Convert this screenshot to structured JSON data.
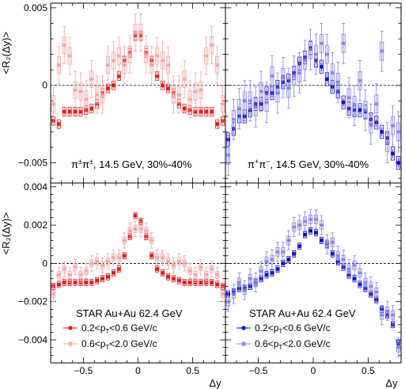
{
  "figure": {
    "ylabel": "<R₂(Δy)>",
    "xlabel": "Δy"
  },
  "chart_data": [
    {
      "type": "scatter",
      "panel": "top-left",
      "annotation": "π±π±, 14.5 GeV, 30%-40%",
      "ylabel": "<R₂(Δy)>",
      "xlabel": "",
      "xlim": [
        -0.8,
        0.8
      ],
      "ylim": [
        -0.0063,
        0.0053
      ],
      "yticks": [
        -0.005,
        0,
        0.005
      ],
      "yticklabels": [
        "−0.005",
        "0",
        "0.005"
      ],
      "xticks": [],
      "series": [
        {
          "name": "0.2<pT<0.6 GeV/c",
          "style": "filled",
          "color": "#e31a1c",
          "x": [
            -0.775,
            -0.725,
            -0.675,
            -0.625,
            -0.575,
            -0.525,
            -0.475,
            -0.425,
            -0.375,
            -0.325,
            -0.275,
            -0.225,
            -0.175,
            -0.125,
            -0.075,
            -0.025,
            0.025,
            0.075,
            0.125,
            0.175,
            0.225,
            0.275,
            0.325,
            0.375,
            0.425,
            0.475,
            0.525,
            0.575,
            0.625,
            0.675,
            0.725,
            0.775
          ],
          "y": [
            -0.0023,
            -0.0025,
            -0.0017,
            -0.0017,
            -0.0017,
            -0.0017,
            -0.0016,
            -0.0015,
            -0.0012,
            -0.0005,
            -0.0002,
            0.0,
            0.0006,
            0.0016,
            0.0021,
            0.0032,
            0.0032,
            0.0021,
            0.0016,
            0.0006,
            0.0,
            -0.0002,
            -0.0005,
            -0.0012,
            -0.0015,
            -0.0016,
            -0.0017,
            -0.0017,
            -0.0017,
            -0.0017,
            -0.0025,
            -0.0023
          ],
          "err": [
            0.0002,
            0.0002,
            0.0002,
            0.0002,
            0.0002,
            0.0002,
            0.0002,
            0.0002,
            0.0002,
            0.0002,
            0.0002,
            0.0002,
            0.0002,
            0.0002,
            0.0002,
            0.0002,
            0.0002,
            0.0002,
            0.0002,
            0.0002,
            0.0002,
            0.0002,
            0.0002,
            0.0002,
            0.0002,
            0.0002,
            0.0002,
            0.0002,
            0.0002,
            0.0002,
            0.0002,
            0.0002
          ]
        },
        {
          "name": "0.6<pT<2.0 GeV/c",
          "style": "open-star",
          "color": "#f4a0a0",
          "x": [
            -0.775,
            -0.725,
            -0.675,
            -0.625,
            -0.575,
            -0.525,
            -0.475,
            -0.425,
            -0.375,
            -0.325,
            -0.275,
            -0.225,
            -0.175,
            -0.125,
            -0.075,
            -0.025,
            0.025,
            0.075,
            0.125,
            0.175,
            0.225,
            0.275,
            0.325,
            0.375,
            0.425,
            0.475,
            0.525,
            0.575,
            0.625,
            0.675,
            0.725,
            0.775
          ],
          "y": [
            -0.0012,
            0.0013,
            0.0026,
            0.0019,
            -0.0003,
            -0.0004,
            -0.0009,
            0.0004,
            -0.0006,
            -0.0006,
            0.0013,
            0.0016,
            0.0019,
            0.0013,
            0.002,
            0.0034,
            0.0034,
            0.002,
            0.0013,
            0.0019,
            0.0016,
            0.0013,
            -0.0006,
            -0.0006,
            0.0004,
            -0.0009,
            -0.0004,
            -0.0003,
            0.0019,
            0.0026,
            0.0013,
            -0.0012
          ],
          "err": [
            0.0012,
            0.0012,
            0.0012,
            0.0012,
            0.0012,
            0.0012,
            0.0012,
            0.0012,
            0.0012,
            0.0012,
            0.0012,
            0.0012,
            0.0012,
            0.0012,
            0.0012,
            0.0012,
            0.0012,
            0.0012,
            0.0012,
            0.0012,
            0.0012,
            0.0012,
            0.0012,
            0.0012,
            0.0012,
            0.0012,
            0.0012,
            0.0012,
            0.0012,
            0.0012,
            0.0012,
            0.0012
          ]
        }
      ]
    },
    {
      "type": "scatter",
      "panel": "top-right",
      "annotation": "π+π−, 14.5 GeV, 30%-40%",
      "xlabel": "",
      "xlim": [
        -0.8,
        0.8
      ],
      "ylim": [
        -0.0063,
        0.0053
      ],
      "xticks": [],
      "series": [
        {
          "name": "0.2<pT<0.6 GeV/c",
          "style": "filled",
          "color": "#1010d0",
          "x": [
            -0.775,
            -0.725,
            -0.675,
            -0.625,
            -0.575,
            -0.525,
            -0.475,
            -0.425,
            -0.375,
            -0.325,
            -0.275,
            -0.225,
            -0.175,
            -0.125,
            -0.075,
            -0.025,
            0.025,
            0.075,
            0.125,
            0.175,
            0.225,
            0.275,
            0.325,
            0.375,
            0.425,
            0.475,
            0.525,
            0.575,
            0.625,
            0.675,
            0.725,
            0.775
          ],
          "y": [
            -0.0035,
            -0.0028,
            -0.002,
            -0.002,
            -0.0016,
            -0.0012,
            -0.0012,
            -0.0005,
            -0.0005,
            -0.0001,
            0.0002,
            0.0003,
            0.0008,
            0.0014,
            0.0018,
            0.0024,
            0.0016,
            0.0012,
            0.0004,
            -0.0001,
            -0.0004,
            -0.0011,
            -0.0015,
            -0.0016,
            -0.0016,
            -0.0017,
            -0.0022,
            -0.0024,
            -0.003,
            -0.0034,
            -0.0044,
            -0.005
          ],
          "err": [
            0.0003,
            0.0003,
            0.0003,
            0.0003,
            0.0003,
            0.0003,
            0.0003,
            0.0003,
            0.0003,
            0.0003,
            0.0003,
            0.0003,
            0.0003,
            0.0003,
            0.0003,
            0.0003,
            0.0003,
            0.0003,
            0.0003,
            0.0003,
            0.0003,
            0.0003,
            0.0003,
            0.0003,
            0.0003,
            0.0003,
            0.0003,
            0.0003,
            0.0003,
            0.0003,
            0.0003,
            0.0003
          ]
        },
        {
          "name": "0.6<pT<2.0 GeV/c",
          "style": "open-star",
          "color": "#8080e0",
          "x": [
            -0.775,
            -0.725,
            -0.675,
            -0.625,
            -0.575,
            -0.525,
            -0.475,
            -0.425,
            -0.375,
            -0.325,
            -0.275,
            -0.225,
            -0.175,
            -0.125,
            -0.075,
            -0.025,
            0.025,
            0.075,
            0.125,
            0.175,
            0.225,
            0.275,
            0.325,
            0.375,
            0.425,
            0.475,
            0.525,
            0.575,
            0.625,
            0.675,
            0.725,
            0.775
          ],
          "y": [
            -0.0045,
            -0.0022,
            -0.0015,
            -0.001,
            -0.001,
            -0.0014,
            -0.0004,
            -0.0011,
            0.0006,
            -0.0005,
            0.0005,
            -0.0002,
            0.0006,
            0.0008,
            0.0016,
            0.0023,
            0.002,
            0.0027,
            0.002,
            0.0008,
            0.0002,
            0.0027,
            -0.0008,
            -0.0013,
            0.0003,
            -0.0016,
            -0.0025,
            -0.0012,
            0.0022,
            -0.0037,
            -0.0026,
            -0.003
          ],
          "err": [
            0.0013,
            0.0013,
            0.0013,
            0.0013,
            0.0013,
            0.0013,
            0.0013,
            0.0013,
            0.0013,
            0.0013,
            0.0013,
            0.0013,
            0.0013,
            0.0013,
            0.0013,
            0.0013,
            0.0013,
            0.0013,
            0.0013,
            0.0013,
            0.0013,
            0.0013,
            0.0013,
            0.0013,
            0.0013,
            0.0013,
            0.0013,
            0.0013,
            0.0013,
            0.0013,
            0.0013,
            0.0013
          ]
        }
      ]
    },
    {
      "type": "scatter",
      "panel": "bottom-left",
      "annotation": "STAR Au+Au 62.4 GeV",
      "ylabel": "<R₂(Δy)>",
      "xlabel": "",
      "xlim": [
        -0.8,
        0.8
      ],
      "ylim": [
        -0.0052,
        0.0042
      ],
      "yticks": [
        -0.004,
        -0.002,
        0,
        0.002,
        0.004
      ],
      "yticklabels": [
        "−0.004",
        "−0.002",
        "0",
        "0.002",
        "0.004"
      ],
      "xticks": [
        -0.5,
        0,
        0.5
      ],
      "xticklabels": [
        "−0.5",
        "0",
        "0.5"
      ],
      "legend": "bottom-left",
      "series": [
        {
          "name": "0.2<pT<0.6 GeV/c",
          "label": "0.2<p",
          "label_sub": "T",
          "label_tail": "<0.6 GeV/c",
          "style": "filled",
          "color": "#e31a1c",
          "x": [
            -0.775,
            -0.725,
            -0.675,
            -0.625,
            -0.575,
            -0.525,
            -0.475,
            -0.425,
            -0.375,
            -0.325,
            -0.275,
            -0.225,
            -0.175,
            -0.125,
            -0.075,
            -0.025,
            0.025,
            0.075,
            0.125,
            0.175,
            0.225,
            0.275,
            0.325,
            0.375,
            0.425,
            0.475,
            0.525,
            0.575,
            0.625,
            0.675,
            0.725,
            0.775
          ],
          "y": [
            -0.0012,
            -0.0011,
            -0.001,
            -0.001,
            -0.001,
            -0.001,
            -0.001,
            -0.001,
            -0.0009,
            -0.0008,
            -0.0007,
            -0.0005,
            -0.0003,
            0.0004,
            0.0014,
            0.0025,
            0.0022,
            0.0014,
            0.0004,
            -0.0003,
            -0.0005,
            -0.0007,
            -0.0008,
            -0.0009,
            -0.001,
            -0.001,
            -0.001,
            -0.001,
            -0.001,
            -0.001,
            -0.0011,
            -0.0012
          ],
          "err": [
            0.00012,
            0.00012,
            0.00012,
            0.00012,
            0.00012,
            0.00012,
            0.00012,
            0.00012,
            0.00012,
            0.00012,
            0.00012,
            0.00012,
            0.00012,
            0.00012,
            0.00012,
            0.00012,
            0.00012,
            0.00012,
            0.00012,
            0.00012,
            0.00012,
            0.00012,
            0.00012,
            0.00012,
            0.00012,
            0.00012,
            0.00012,
            0.00012,
            0.00012,
            0.00012,
            0.00012,
            0.00012
          ]
        },
        {
          "name": "0.6<pT<2.0 GeV/c",
          "label": "0.6<p",
          "label_sub": "T",
          "label_tail": "<2.0 GeV/c",
          "style": "open-star",
          "color": "#f4a0a0",
          "x": [
            -0.775,
            -0.725,
            -0.675,
            -0.625,
            -0.575,
            -0.525,
            -0.475,
            -0.425,
            -0.375,
            -0.325,
            -0.275,
            -0.225,
            -0.175,
            -0.125,
            -0.075,
            -0.025,
            0.025,
            0.075,
            0.125,
            0.175,
            0.225,
            0.275,
            0.325,
            0.375,
            0.425,
            0.475,
            0.525,
            0.575,
            0.625,
            0.675,
            0.725,
            0.775
          ],
          "y": [
            -0.0016,
            -0.0006,
            -0.0003,
            -0.0006,
            -0.0002,
            -0.0006,
            -0.0004,
            0.0,
            0.0001,
            -0.0001,
            0.0001,
            0.0003,
            0.0003,
            0.0012,
            0.0017,
            0.0018,
            0.0018,
            0.0017,
            0.0012,
            0.0003,
            0.0003,
            0.0001,
            -0.0001,
            0.0001,
            0.0,
            -0.0004,
            -0.0006,
            -0.0002,
            -0.0006,
            -0.0003,
            -0.0006,
            -0.0016
          ],
          "err": [
            0.0004,
            0.0004,
            0.0004,
            0.0004,
            0.0004,
            0.0004,
            0.0004,
            0.0004,
            0.0004,
            0.0004,
            0.0004,
            0.0004,
            0.0004,
            0.0004,
            0.0004,
            0.0004,
            0.0004,
            0.0004,
            0.0004,
            0.0004,
            0.0004,
            0.0004,
            0.0004,
            0.0004,
            0.0004,
            0.0004,
            0.0004,
            0.0004,
            0.0004,
            0.0004,
            0.0004,
            0.0004
          ]
        }
      ]
    },
    {
      "type": "scatter",
      "panel": "bottom-right",
      "annotation": "STAR Au+Au 62.4 GeV",
      "xlabel": "Δy",
      "xlim": [
        -0.8,
        0.8
      ],
      "ylim": [
        -0.0052,
        0.0042
      ],
      "xticks": [
        -0.5,
        0,
        0.5
      ],
      "xticklabels": [
        "−0.5",
        "0",
        "0.5"
      ],
      "legend": "bottom-left",
      "series": [
        {
          "name": "0.2<pT<0.6 GeV/c",
          "label": "0.2<p",
          "label_sub": "T",
          "label_tail": "<0.6 GeV/c",
          "style": "filled",
          "color": "#1010d0",
          "x": [
            -0.775,
            -0.725,
            -0.675,
            -0.625,
            -0.575,
            -0.525,
            -0.475,
            -0.425,
            -0.375,
            -0.325,
            -0.275,
            -0.225,
            -0.175,
            -0.125,
            -0.075,
            -0.025,
            0.025,
            0.075,
            0.125,
            0.175,
            0.225,
            0.275,
            0.325,
            0.375,
            0.425,
            0.475,
            0.525,
            0.575,
            0.625,
            0.675,
            0.725,
            0.775
          ],
          "y": [
            -0.0016,
            -0.0015,
            -0.0013,
            -0.0013,
            -0.0012,
            -0.001,
            -0.0008,
            -0.0006,
            -0.0005,
            -0.0003,
            0.0,
            0.0002,
            0.0005,
            0.0009,
            0.0015,
            0.0017,
            0.0016,
            0.0012,
            0.001,
            0.0005,
            0.0001,
            -0.0002,
            -0.0006,
            -0.0008,
            -0.0011,
            -0.0013,
            -0.0016,
            -0.0019,
            -0.0024,
            -0.0027,
            -0.0032,
            -0.0042
          ],
          "err": [
            0.00012,
            0.00012,
            0.00012,
            0.00012,
            0.00012,
            0.00012,
            0.00012,
            0.00012,
            0.00012,
            0.00012,
            0.00012,
            0.00012,
            0.00012,
            0.00012,
            0.00012,
            0.00012,
            0.00012,
            0.00012,
            0.00012,
            0.00012,
            0.00012,
            0.00012,
            0.00012,
            0.00012,
            0.00012,
            0.00012,
            0.00012,
            0.00012,
            0.00012,
            0.00012,
            0.00012,
            0.00012
          ]
        },
        {
          "name": "0.6<pT<2.0 GeV/c",
          "label": "0.6<p",
          "label_sub": "T",
          "label_tail": "<2.0 GeV/c",
          "style": "open-star",
          "color": "#8080e0",
          "x": [
            -0.775,
            -0.725,
            -0.675,
            -0.625,
            -0.575,
            -0.525,
            -0.475,
            -0.425,
            -0.375,
            -0.325,
            -0.275,
            -0.225,
            -0.175,
            -0.125,
            -0.075,
            -0.025,
            0.025,
            0.075,
            0.125,
            0.175,
            0.225,
            0.275,
            0.325,
            0.375,
            0.425,
            0.475,
            0.525,
            0.575,
            0.625,
            0.675,
            0.725,
            0.775
          ],
          "y": [
            -0.002,
            -0.0016,
            -0.001,
            -0.0014,
            -0.0008,
            -0.001,
            -0.0004,
            0.0001,
            0.0002,
            0.0006,
            0.0006,
            0.0012,
            0.0019,
            0.002,
            0.0022,
            0.0023,
            0.0023,
            0.002,
            0.001,
            0.0011,
            0.0004,
            0.0002,
            -0.0003,
            -0.0001,
            -0.0005,
            -0.001,
            -0.0012,
            -0.0015,
            -0.0027,
            -0.0025,
            -0.0027,
            -0.0044
          ],
          "err": [
            0.0005,
            0.0005,
            0.0005,
            0.0005,
            0.0005,
            0.0005,
            0.0005,
            0.0005,
            0.0005,
            0.0005,
            0.0005,
            0.0005,
            0.0005,
            0.0005,
            0.0005,
            0.0005,
            0.0005,
            0.0005,
            0.0005,
            0.0005,
            0.0005,
            0.0005,
            0.0005,
            0.0005,
            0.0005,
            0.0005,
            0.0005,
            0.0005,
            0.0005,
            0.0005,
            0.0005,
            0.0005
          ]
        }
      ]
    }
  ]
}
